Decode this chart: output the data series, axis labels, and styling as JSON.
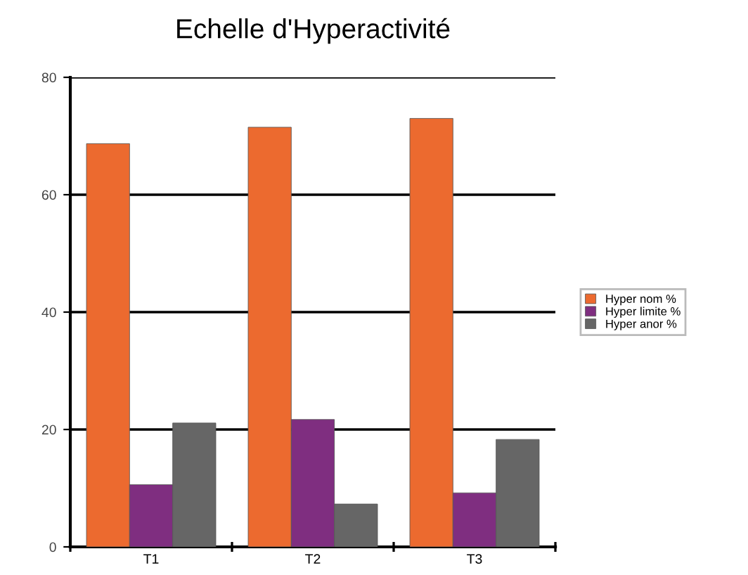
{
  "chart_data": {
    "type": "bar",
    "title": "Echelle d'Hyperactivité",
    "categories": [
      "T1",
      "T2",
      "T3"
    ],
    "series": [
      {
        "name": "Hyper nom %",
        "color": "#ec6a2f",
        "values": [
          68.7,
          71.5,
          73.0
        ]
      },
      {
        "name": "Hyper limite %",
        "color": "#7f2e80",
        "values": [
          10.6,
          21.7,
          9.2
        ]
      },
      {
        "name": "Hyper anor %",
        "color": "#666666",
        "values": [
          21.1,
          7.3,
          18.3
        ]
      }
    ],
    "ylim": [
      0,
      80
    ],
    "yticks": [
      0,
      20,
      40,
      60,
      80
    ],
    "grid": "y",
    "legend": "right"
  }
}
